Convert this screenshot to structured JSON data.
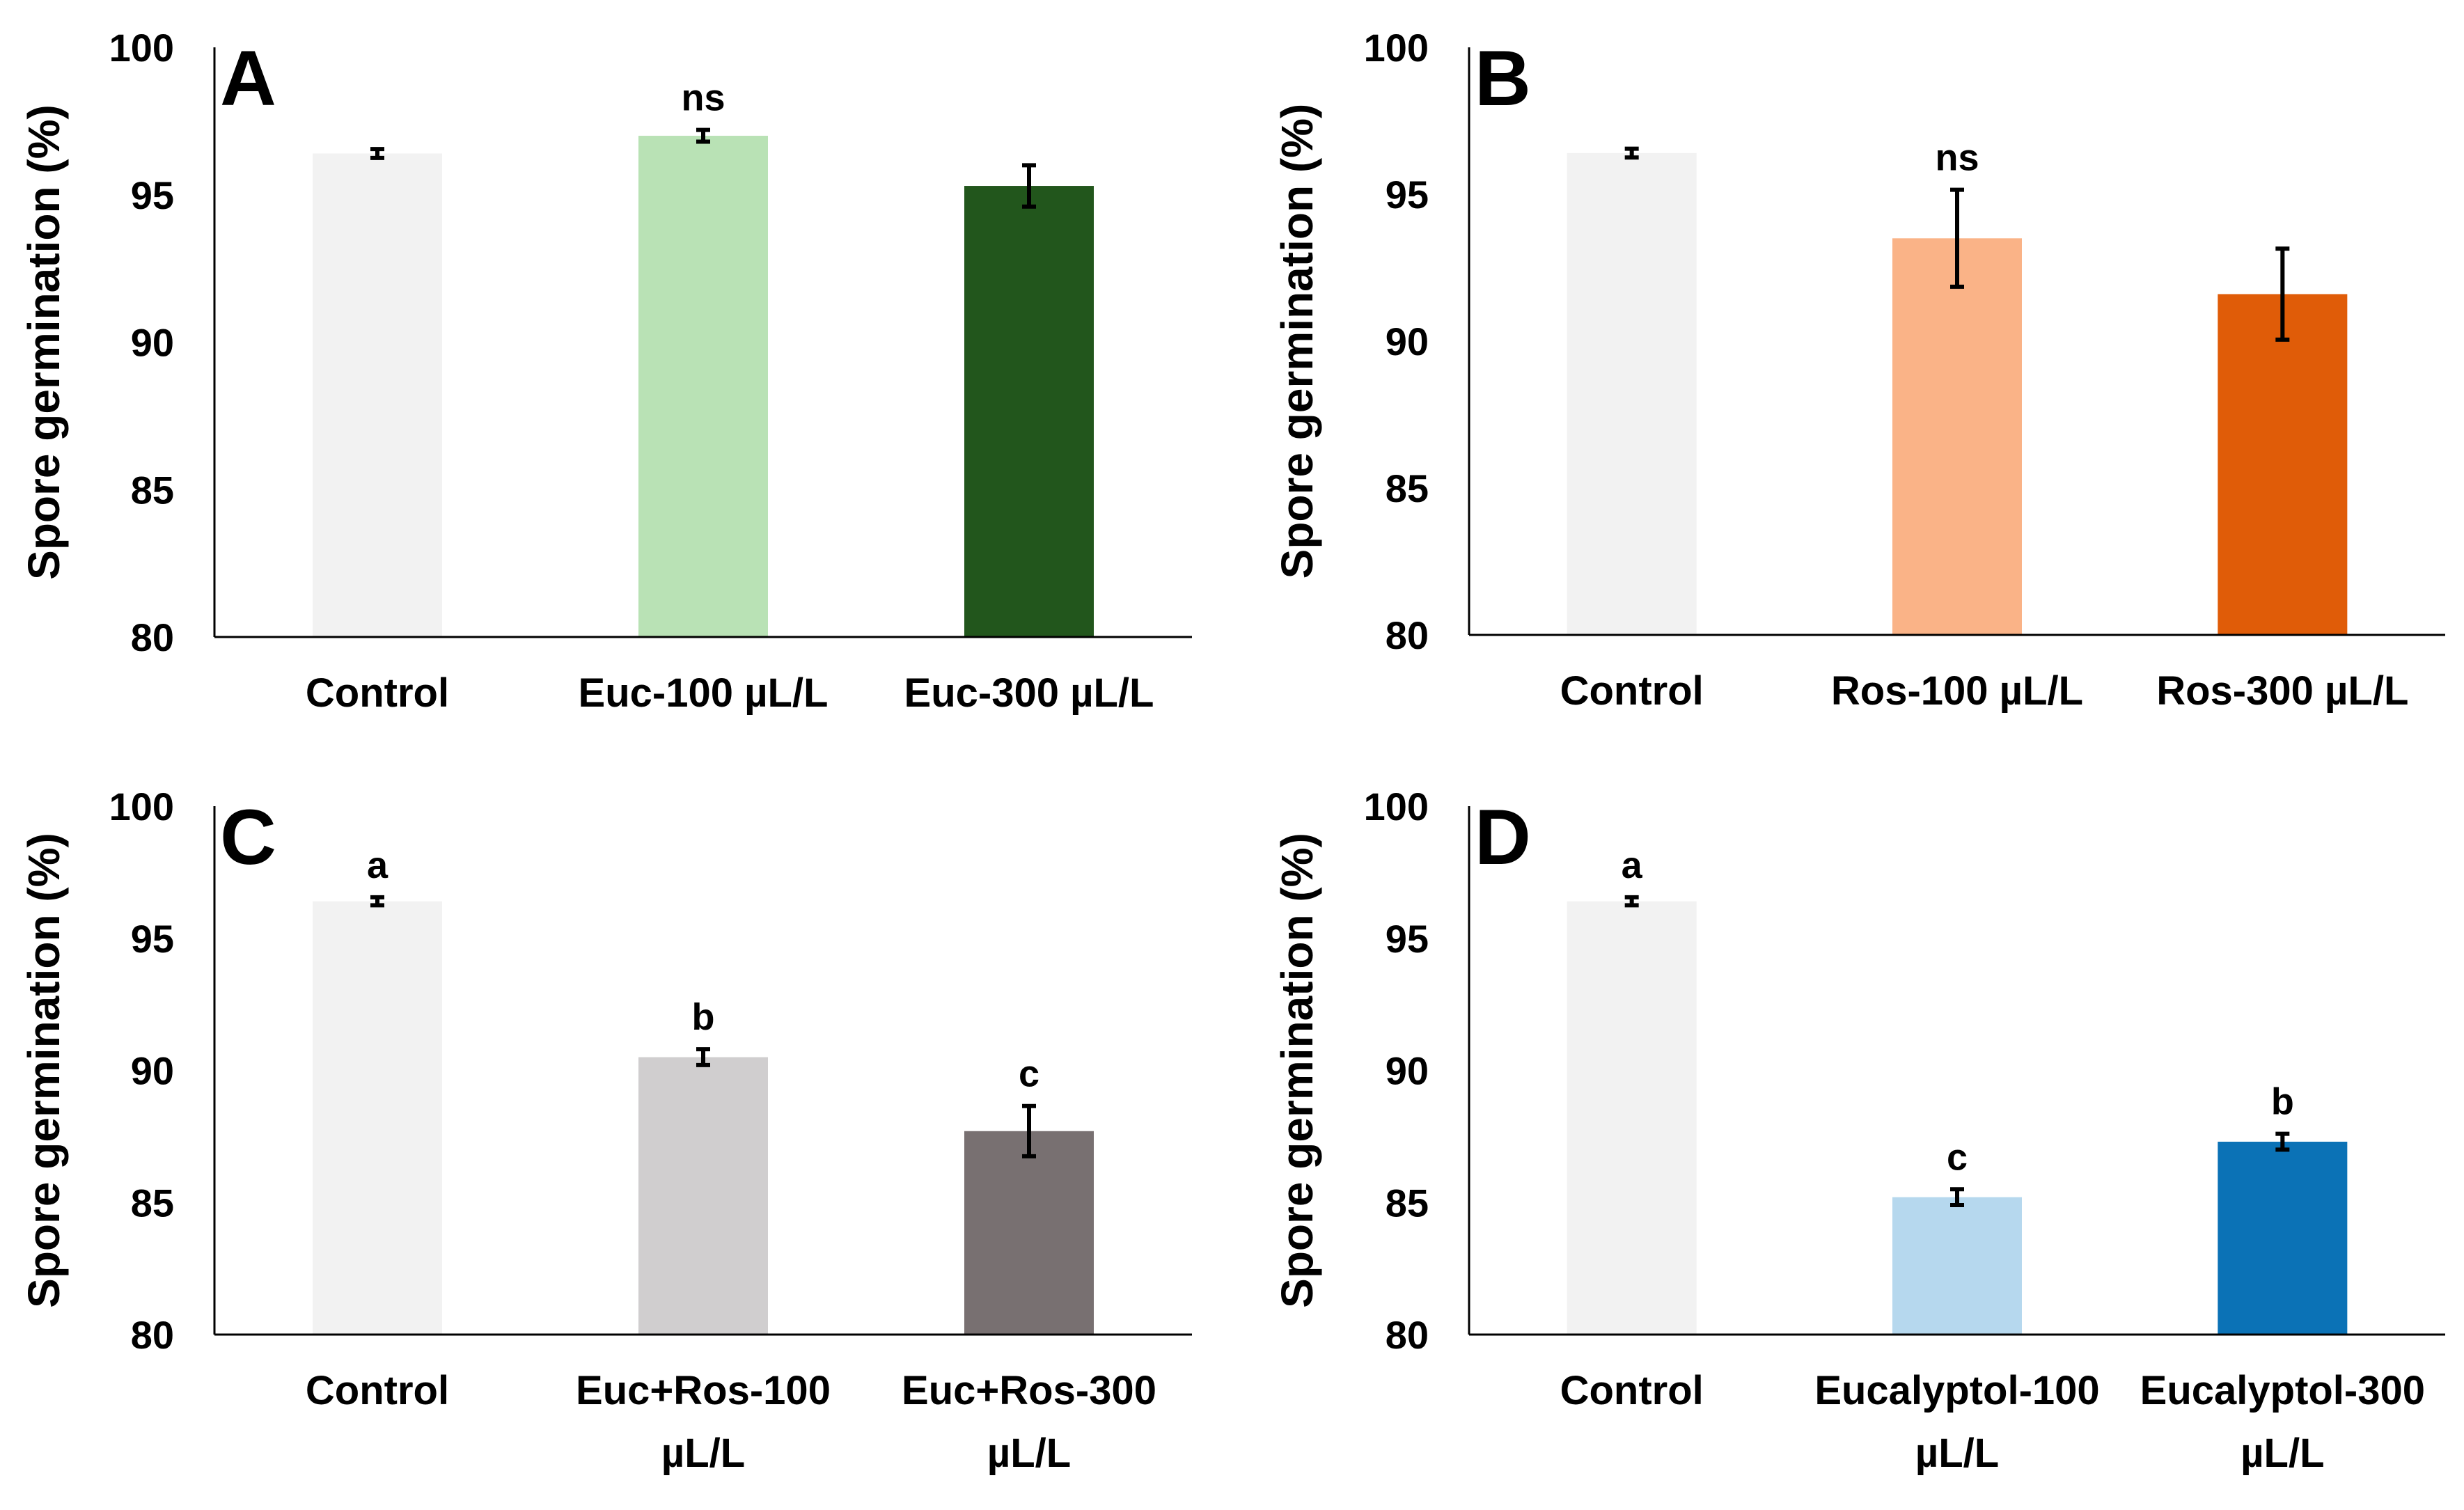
{
  "chart_data": [
    {
      "type": "bar",
      "panel": "A",
      "ylabel": "Spore germination (%)",
      "ylim": [
        80,
        100
      ],
      "yticks": [
        80,
        85,
        90,
        95,
        100
      ],
      "categories": [
        [
          "Control"
        ],
        [
          "Euc-100 µL/L"
        ],
        [
          "Euc-300 µL/L"
        ]
      ],
      "values": [
        96.4,
        97.0,
        95.3
      ],
      "errors": [
        0.15,
        0.2,
        0.7
      ],
      "colors": [
        "#f2f2f2",
        "#b9e2b5",
        "#22561c"
      ],
      "annotations": [
        "",
        "ns",
        ""
      ]
    },
    {
      "type": "bar",
      "panel": "B",
      "ylabel": "Spore germination (%)",
      "ylim": [
        80,
        100
      ],
      "yticks": [
        80,
        85,
        90,
        95,
        100
      ],
      "categories": [
        [
          "Control"
        ],
        [
          "Ros-100 µL/L"
        ],
        [
          "Ros-300 µL/L"
        ]
      ],
      "values": [
        96.4,
        93.5,
        91.6
      ],
      "errors": [
        0.15,
        1.65,
        1.55
      ],
      "colors": [
        "#f2f2f2",
        "#fab387",
        "#e05c08"
      ],
      "annotations": [
        "",
        "ns",
        ""
      ]
    },
    {
      "type": "bar",
      "panel": "C",
      "ylabel": "Spore germination (%)",
      "ylim": [
        80,
        100
      ],
      "yticks": [
        80,
        85,
        90,
        95,
        100
      ],
      "categories": [
        [
          "Control"
        ],
        [
          "Euc+Ros-100",
          "µL/L"
        ],
        [
          "Euc+Ros-300",
          "µL/L"
        ]
      ],
      "values": [
        96.4,
        90.5,
        87.7
      ],
      "errors": [
        0.15,
        0.3,
        0.95
      ],
      "colors": [
        "#f2f2f2",
        "#d0cecf",
        "#787071"
      ],
      "annotations": [
        "a",
        "b",
        "c"
      ]
    },
    {
      "type": "bar",
      "panel": "D",
      "ylabel": "Spore germination (%)",
      "ylim": [
        80,
        100
      ],
      "yticks": [
        80,
        85,
        90,
        95,
        100
      ],
      "categories": [
        [
          "Control"
        ],
        [
          "Eucalyptol-100",
          "µL/L"
        ],
        [
          "Eucalyptol-300",
          "µL/L"
        ]
      ],
      "values": [
        96.4,
        85.2,
        87.3
      ],
      "errors": [
        0.15,
        0.3,
        0.3
      ],
      "colors": [
        "#f2f2f2",
        "#b6d8ee",
        "#0b72b6"
      ],
      "annotations": [
        "a",
        "c",
        "b"
      ]
    }
  ]
}
